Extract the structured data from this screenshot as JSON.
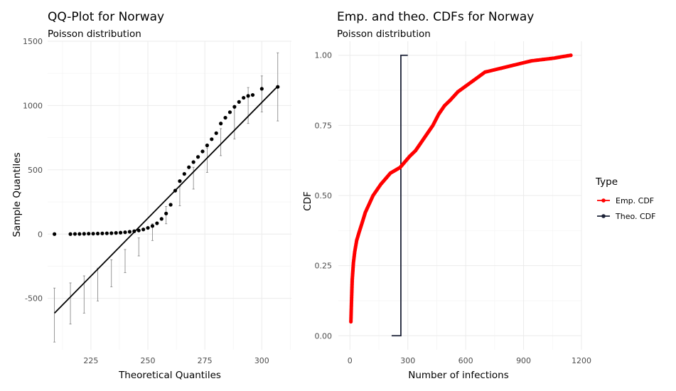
{
  "chart_data": [
    {
      "type": "scatter",
      "title": "QQ-Plot for Norway",
      "subtitle": "Poisson distribution",
      "xlabel": "Theoretical Quantiles",
      "ylabel": "Sample Quantiles",
      "xlim": [
        206,
        313
      ],
      "ylim": [
        -900,
        1500
      ],
      "xticks": [
        225,
        250,
        275,
        300
      ],
      "yticks": [
        -500,
        0,
        500,
        1000,
        1500
      ],
      "grid": true,
      "reference_line": {
        "x": [
          209,
          307
        ],
        "y": [
          -615,
          1150
        ]
      },
      "points": [
        [
          209,
          0
        ],
        [
          216,
          0
        ],
        [
          218,
          1
        ],
        [
          220,
          1
        ],
        [
          222,
          2
        ],
        [
          224,
          3
        ],
        [
          226,
          3
        ],
        [
          228,
          4
        ],
        [
          230,
          5
        ],
        [
          232,
          6
        ],
        [
          234,
          7
        ],
        [
          236,
          9
        ],
        [
          238,
          11
        ],
        [
          240,
          14
        ],
        [
          242,
          18
        ],
        [
          244,
          22
        ],
        [
          246,
          28
        ],
        [
          248,
          36
        ],
        [
          250,
          48
        ],
        [
          252,
          63
        ],
        [
          254,
          84
        ],
        [
          256,
          118
        ],
        [
          258,
          160
        ],
        [
          260,
          228
        ],
        [
          262,
          338
        ],
        [
          264,
          412
        ],
        [
          266,
          468
        ],
        [
          268,
          520
        ],
        [
          270,
          560
        ],
        [
          272,
          600
        ],
        [
          274,
          643
        ],
        [
          276,
          690
        ],
        [
          278,
          738
        ],
        [
          280,
          785
        ],
        [
          282,
          860
        ],
        [
          284,
          905
        ],
        [
          286,
          948
        ],
        [
          288,
          990
        ],
        [
          290,
          1028
        ],
        [
          292,
          1060
        ],
        [
          294,
          1075
        ],
        [
          296,
          1082
        ],
        [
          300,
          1130
        ],
        [
          307,
          1145
        ]
      ],
      "error_bars": [
        [
          209,
          -840,
          -420
        ],
        [
          216,
          -700,
          -380
        ],
        [
          222,
          -615,
          -325
        ],
        [
          228,
          -520,
          -265
        ],
        [
          234,
          -410,
          -200
        ],
        [
          240,
          -300,
          -120
        ],
        [
          246,
          -170,
          -30
        ],
        [
          252,
          -50,
          80
        ],
        [
          258,
          80,
          215
        ],
        [
          264,
          220,
          370
        ],
        [
          270,
          350,
          520
        ],
        [
          276,
          480,
          670
        ],
        [
          282,
          610,
          820
        ],
        [
          288,
          740,
          980
        ],
        [
          294,
          860,
          1140
        ],
        [
          300,
          950,
          1230
        ],
        [
          307,
          880,
          1410
        ]
      ]
    },
    {
      "type": "line",
      "title": "Emp. and theo. CDFs for Norway",
      "subtitle": "Poisson distribution",
      "xlabel": "Number of infections",
      "ylabel": "CDF",
      "xlim": [
        -60,
        1200
      ],
      "ylim": [
        -0.05,
        1.05
      ],
      "xticks": [
        0,
        300,
        600,
        900,
        1200
      ],
      "yticks": [
        0.0,
        0.25,
        0.5,
        0.75,
        1.0
      ],
      "ytick_labels": [
        "0.00",
        "0.25",
        "0.50",
        "0.75",
        "1.00"
      ],
      "grid": true,
      "legend": {
        "title": "Type",
        "position": "right"
      },
      "series": [
        {
          "name": "Emp. CDF",
          "color": "#ff0000",
          "x": [
            5,
            8,
            12,
            18,
            25,
            35,
            48,
            62,
            80,
            100,
            120,
            140,
            160,
            185,
            210,
            235,
            260,
            285,
            310,
            340,
            370,
            400,
            430,
            460,
            490,
            520,
            560,
            600,
            640,
            700,
            760,
            820,
            880,
            940,
            1000,
            1060,
            1100,
            1145
          ],
          "y": [
            0.05,
            0.12,
            0.2,
            0.26,
            0.3,
            0.34,
            0.37,
            0.4,
            0.44,
            0.47,
            0.5,
            0.52,
            0.54,
            0.56,
            0.58,
            0.59,
            0.6,
            0.62,
            0.64,
            0.66,
            0.69,
            0.72,
            0.75,
            0.79,
            0.82,
            0.84,
            0.87,
            0.89,
            0.91,
            0.94,
            0.95,
            0.96,
            0.97,
            0.98,
            0.985,
            0.99,
            0.995,
            1.0
          ]
        },
        {
          "name": "Theo. CDF",
          "color": "#1c2237",
          "x": [
            216,
            264,
            264,
            300
          ],
          "y": [
            0.0,
            0.0,
            1.0,
            1.0
          ]
        }
      ]
    }
  ]
}
